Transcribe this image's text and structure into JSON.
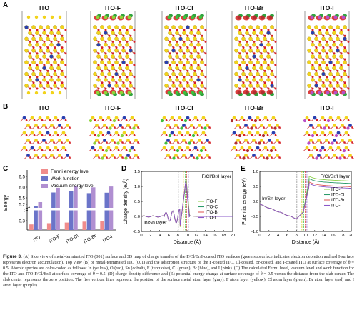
{
  "figure": {
    "panels": {
      "A": "A",
      "B": "B",
      "C": "C",
      "D": "D",
      "E": "E"
    },
    "structures": [
      "ITO",
      "ITO-F",
      "ITO-Cl",
      "ITO-Br",
      "ITO-I"
    ],
    "colors": {
      "in": "#f2d31b",
      "sn": "#2a3fb0",
      "o": "#d81f26",
      "f": "#8fd43a",
      "cl": "#3fbf3f",
      "br": "#b03030",
      "i": "#b94fc8",
      "acc": "#1a9a2a",
      "dep": "#d21c1c",
      "slab": "#a0a0a0"
    }
  },
  "caption": {
    "label": "Figure 3.",
    "text": "(A) Side view of metal-terminated ITO (001) surface and 3D map of charge transfer of the F/Cl/Br/I-coated ITO surfaces (green subsurface indicates electron depletion and red I-surface represents electron accumulation). Top view (B) of metal-terminated ITO (001) and the adsorption structure of the F-coated ITO, Cl-coated, Br-coated, and I-coated ITO at surface coverage of θ = 0.5. Atomic species are color-coded as follows: In (yellow), O (red), Sn (cobalt), F (turquoise), Cl (green), Br (blue), and I (pink). (C) The calculated Fermi level, vacuum level and work function for the ITO and ITO-F/Cl/Br/I at surface coverage of θ = 0.5. (D) charge density difference and (E) potential energy change at surface coverage of θ = 0.5 versus the distance from the slab center. The slab center represents the zero position. The five vertical lines represent the position of the surface metal atom layer (gray), F atom layer (yellow), Cl atom layer (green), Br atom layer (red) and I atom layer (purple)."
  },
  "chart_data": [
    {
      "panel": "C",
      "type": "bar",
      "categories": [
        "ITO",
        "ITO-F",
        "ITO-Cl",
        "ITO-Br",
        "ITO-I"
      ],
      "ylabel": "Energy",
      "ytick_labels": [
        "0.3",
        "5.2",
        "5.5",
        "6.0",
        "6.5"
      ],
      "ylim_upper": [
        5.0,
        6.8
      ],
      "broken_axis": true,
      "series": [
        {
          "name": "Fermi energy level",
          "color": "#f08c8c",
          "values": [
            0.18,
            0.22,
            0.24,
            0.27,
            0.29
          ]
        },
        {
          "name": "Work function",
          "color": "#6b74c9",
          "values": [
            5.12,
            5.75,
            5.8,
            5.72,
            5.74
          ]
        },
        {
          "name": "Vacuum energy level",
          "color": "#b08fd1",
          "values": [
            5.3,
            5.97,
            6.04,
            5.99,
            6.03
          ]
        }
      ],
      "legend": "top-right"
    },
    {
      "panel": "D",
      "type": "line",
      "title": "",
      "annotations": [
        "F/Cl/Br/I layer",
        "In/Sn layer"
      ],
      "xlabel": "Distance (Å)",
      "ylabel": "Charge density (e/Å)",
      "xlim": [
        0,
        20
      ],
      "ylim": [
        -0.5,
        1.5
      ],
      "xticks": [
        0,
        2,
        4,
        6,
        8,
        10,
        12,
        14,
        16,
        18,
        20
      ],
      "yticks": [
        -0.5,
        0.0,
        0.5,
        1.0,
        1.5
      ],
      "ytick_labels": [
        "-0.5",
        "0.0",
        "0.5",
        "1.0",
        "1.5"
      ],
      "series": [
        {
          "name": "ITO-F",
          "color": "#8fd14f"
        },
        {
          "name": "ITO-Cl",
          "color": "#2c9b6a"
        },
        {
          "name": "ITO-Br",
          "color": "#e0605e"
        },
        {
          "name": "ITO-I",
          "color": "#8a58c8"
        }
      ],
      "vlines": [
        8.1,
        9.2,
        9.6,
        9.9,
        10.3
      ],
      "legend": "bottom-right"
    },
    {
      "panel": "E",
      "type": "line",
      "annotations": [
        "F/Cl/Br/I layer",
        "In/Sn layer"
      ],
      "xlabel": "Distance (Å)",
      "ylabel": "Potential energy (eV)",
      "xlim": [
        0,
        20
      ],
      "ylim": [
        -1.0,
        1.0
      ],
      "xticks": [
        0,
        2,
        4,
        6,
        8,
        10,
        12,
        14,
        16,
        18,
        20
      ],
      "yticks": [
        -1.0,
        -0.5,
        0.0,
        0.5,
        1.0
      ],
      "ytick_labels": [
        "-1.0",
        "-0.5",
        "0.0",
        "0.5",
        "1.0"
      ],
      "series": [
        {
          "name": "ITO-F",
          "color": "#8fd14f",
          "plateau": 0.74
        },
        {
          "name": "ITO-Cl",
          "color": "#2c9b6a",
          "plateau": 0.66
        },
        {
          "name": "ITO-Br",
          "color": "#e0605e",
          "plateau": 0.55
        },
        {
          "name": "ITO-I",
          "color": "#8a58c8",
          "plateau": 0.5
        }
      ],
      "vlines": [
        8.1,
        9.2,
        9.6,
        9.9,
        10.3
      ],
      "legend": "right"
    }
  ]
}
